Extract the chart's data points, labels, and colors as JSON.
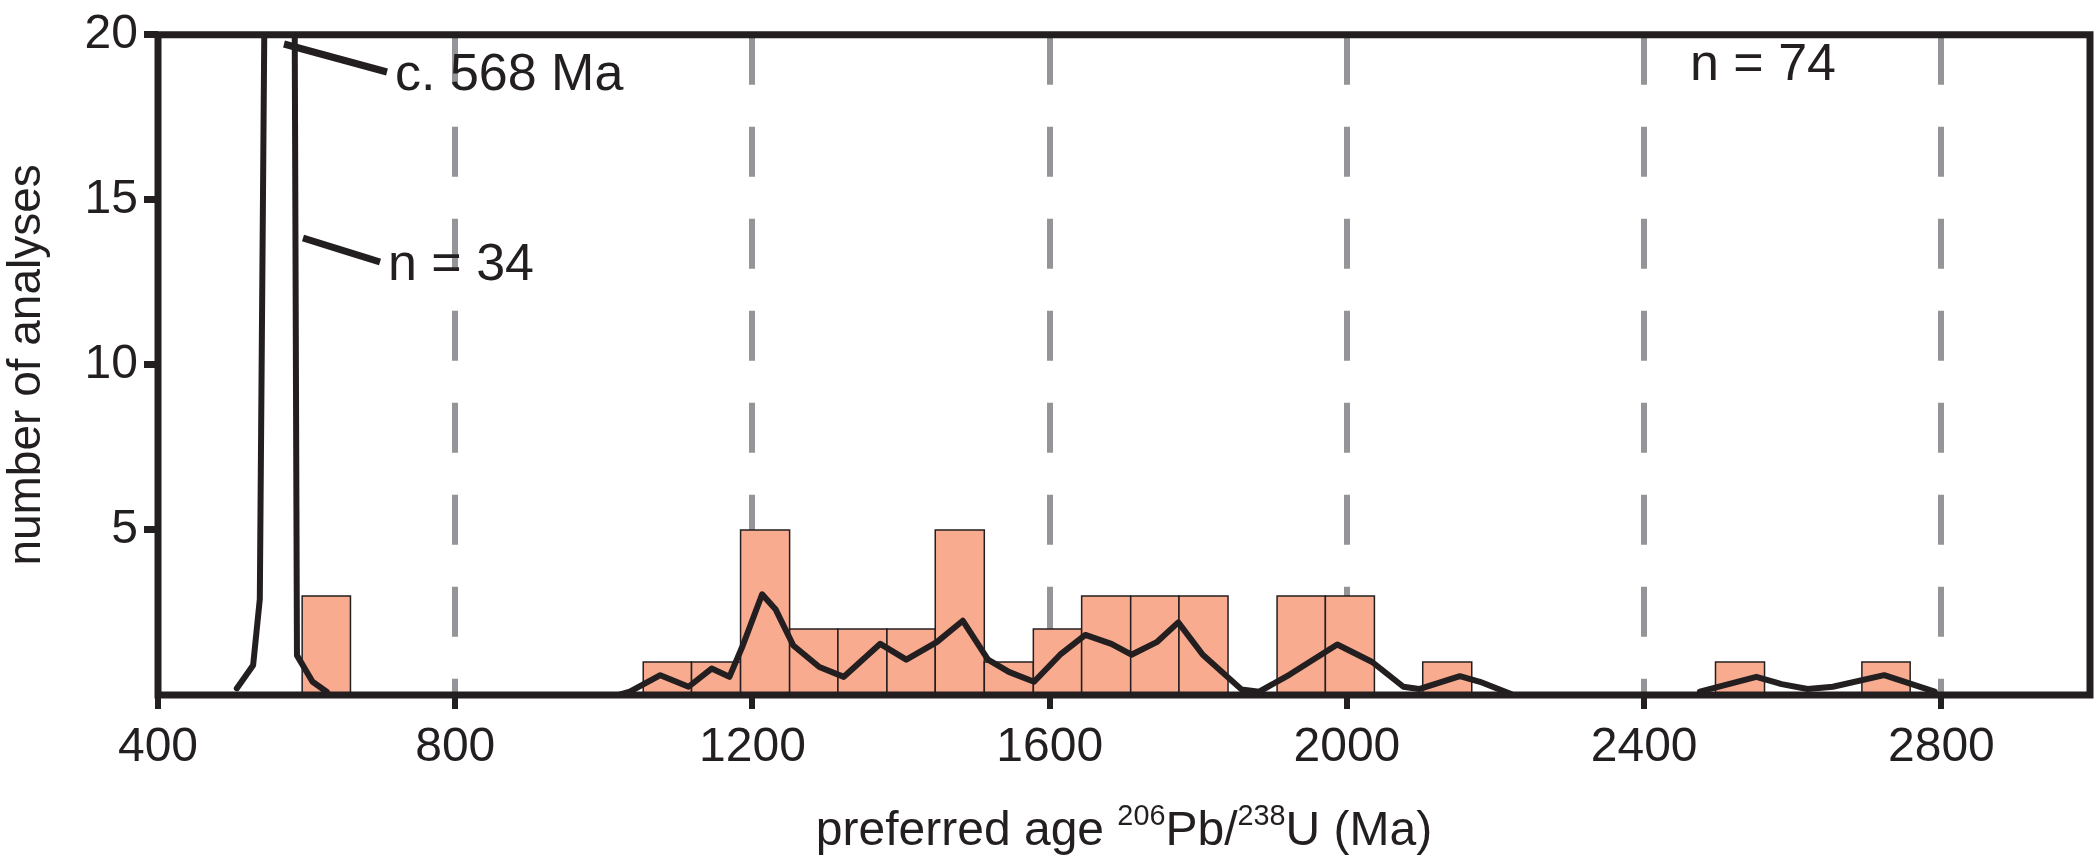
{
  "chart_data": {
    "type": "histogram",
    "xlabel": "preferred age $^{206}$Pb/$^{238}$U (Ma)",
    "ylabel": "number of analyses",
    "xlim": [
      400,
      3000
    ],
    "xticks": [
      400,
      800,
      1200,
      1600,
      2000,
      2400,
      2800
    ],
    "ylim": [
      0,
      20
    ],
    "yticks": [
      5,
      10,
      15,
      20
    ],
    "grid": "x",
    "marker": "none",
    "annotations": [
      "c. 568 Ma",
      "n = 34",
      "n = 74"
    ],
    "series": [
      {
        "color": "#f8ab8f",
        "bins": [
          594,
          659,
          1053,
          1118,
          1184,
          1250,
          1315,
          1381,
          1446,
          1512,
          1578,
          1643,
          1709,
          1774,
          1840,
          1906,
          1971,
          2037,
          2102,
          2168,
          2496,
          2562,
          2693,
          2758
        ],
        "values": [
          3,
          0,
          1,
          1,
          5,
          2,
          2,
          2,
          5,
          1,
          2,
          3,
          3,
          3,
          0,
          3,
          3,
          0,
          1,
          0,
          1,
          0,
          1
        ]
      },
      {
        "type": "line",
        "color": "#231f20",
        "x": [
          506,
          528,
          537,
          543,
          584,
          587,
          608,
          627,
          800,
          1020,
          1035,
          1076,
          1114,
          1145,
          1169,
          1187,
          1213,
          1231,
          1255,
          1290,
          1323,
          1372,
          1407,
          1448,
          1483,
          1517,
          1545,
          1579,
          1614,
          1648,
          1683,
          1710,
          1744,
          1773,
          1806,
          1858,
          1882,
          1923,
          1987,
          2034,
          2076,
          2097,
          2152,
          2179,
          2221,
          2300,
          2475,
          2551,
          2585,
          2620,
          2654,
          2723,
          2791
        ],
        "values": [
          0.2,
          0.9,
          2.9,
          20,
          20,
          1.2,
          0.4,
          0.1,
          null,
          0,
          0.1,
          0.6,
          0.25,
          0.8,
          0.55,
          1.5,
          3.05,
          2.6,
          1.5,
          0.85,
          0.55,
          1.55,
          1.07,
          1.6,
          2.25,
          1.07,
          0.7,
          0.4,
          1.22,
          1.82,
          1.55,
          1.22,
          1.6,
          2.2,
          1.22,
          0.17,
          0.1,
          0.62,
          1.53,
          1.0,
          0.25,
          0.18,
          0.57,
          0.4,
          0.03,
          null,
          0.1,
          0.55,
          0.33,
          0.18,
          0.25,
          0.6,
          0.1
        ]
      }
    ]
  }
}
